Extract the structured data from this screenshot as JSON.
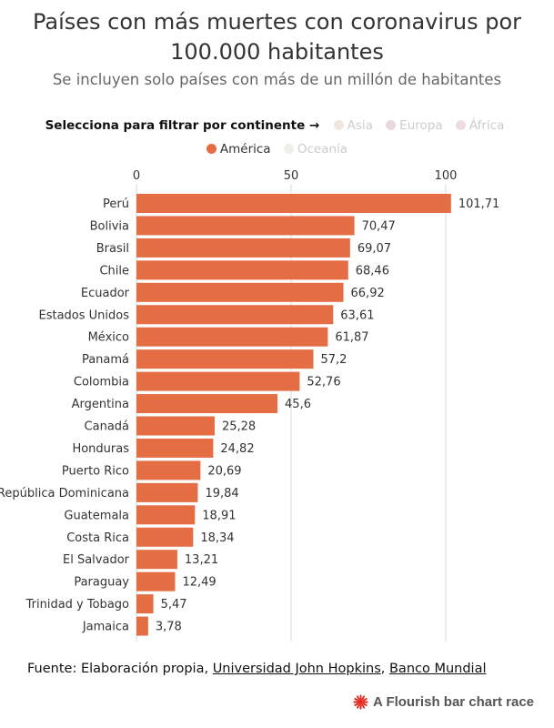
{
  "header": {
    "title_line1": "Países con más muertes con coronavirus por",
    "title_line2": "100.000 habitantes",
    "subtitle": "Se incluyen solo países con más de un millón de habitantes"
  },
  "filter": {
    "label": "Selecciona para filtrar por continente →",
    "continents": [
      {
        "label": "Asia",
        "color": "#efe6e0",
        "active": false
      },
      {
        "label": "Europa",
        "color": "#ead8de",
        "active": false
      },
      {
        "label": "África",
        "color": "#efdcdc",
        "active": false
      },
      {
        "label": "América",
        "color": "#e46d43",
        "active": true
      },
      {
        "label": "Oceanía",
        "color": "#efefea",
        "active": false
      }
    ]
  },
  "chart_data": {
    "type": "bar",
    "orientation": "horizontal",
    "categories": [
      "Perú",
      "Bolivia",
      "Brasil",
      "Chile",
      "Ecuador",
      "Estados Unidos",
      "México",
      "Panamá",
      "Colombia",
      "Argentina",
      "Canadá",
      "Honduras",
      "Puerto Rico",
      "República Dominicana",
      "Guatemala",
      "Costa Rica",
      "El Salvador",
      "Paraguay",
      "Trinidad y Tobago",
      "Jamaica"
    ],
    "values": [
      101.71,
      70.47,
      69.07,
      68.46,
      66.92,
      63.61,
      61.87,
      57.2,
      52.76,
      45.6,
      25.28,
      24.82,
      20.69,
      19.84,
      18.91,
      18.34,
      13.21,
      12.49,
      5.47,
      3.78
    ],
    "value_labels": [
      "101,71",
      "70,47",
      "69,07",
      "68,46",
      "66,92",
      "63,61",
      "61,87",
      "57,2",
      "52,76",
      "45,6",
      "25,28",
      "24,82",
      "20,69",
      "19,84",
      "18,91",
      "18,34",
      "13,21",
      "12,49",
      "5,47",
      "3,78"
    ],
    "x_ticks": [
      0,
      50,
      100
    ],
    "xlim": [
      0,
      102
    ],
    "bar_color": "#e46d43",
    "grid": true,
    "tick_position": "top"
  },
  "footer": {
    "source_prefix": "Fuente: Elaboración propia, ",
    "source_link1": "Universidad John Hopkins",
    "source_sep": ", ",
    "source_link2": "Banco Mundial",
    "credit": "A Flourish bar chart race",
    "credit_color": "#e2251c"
  }
}
